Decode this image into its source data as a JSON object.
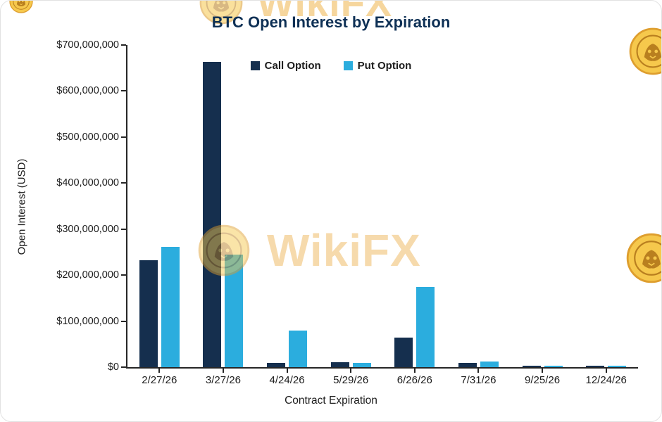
{
  "watermark": {
    "brand": "WikiFX"
  },
  "chart_data": {
    "type": "bar",
    "title": "BTC Open Interest by Expiration",
    "xlabel": "Contract Expiration",
    "ylabel": "Open Interest (USD)",
    "categories": [
      "2/27/26",
      "3/27/26",
      "4/24/26",
      "5/29/26",
      "6/26/26",
      "7/31/26",
      "9/25/26",
      "12/24/26"
    ],
    "series": [
      {
        "name": "Call Option",
        "color": "#152f4e",
        "values": [
          233000000,
          663000000,
          9000000,
          10000000,
          64000000,
          9000000,
          3000000,
          1500000
        ]
      },
      {
        "name": "Put Option",
        "color": "#2badde",
        "values": [
          262000000,
          245000000,
          79000000,
          9000000,
          175000000,
          12000000,
          2000000,
          1000000
        ]
      }
    ],
    "ylim": [
      0,
      700000000
    ],
    "y_ticks": [
      0,
      100000000,
      200000000,
      300000000,
      400000000,
      500000000,
      600000000,
      700000000
    ],
    "y_tick_labels": [
      "$0",
      "$100,000,000",
      "$200,000,000",
      "$300,000,000",
      "$400,000,000",
      "$500,000,000",
      "$600,000,000",
      "$700,000,000"
    ],
    "legend_position": "top",
    "grid": false
  }
}
